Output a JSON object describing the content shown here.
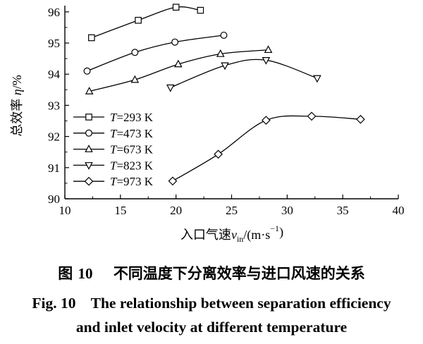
{
  "chart_data": {
    "type": "line",
    "title": "",
    "xlabel": "入口气速",
    "xlabel_var": "v",
    "xlabel_sub": "in",
    "xlabel_unit": "/(m·s",
    "xlabel_unit_sup": "−1",
    "xlabel_unit_end": ")",
    "ylabel": "总效率",
    "ylabel_var": "η",
    "ylabel_unit": "/%",
    "xlim": [
      10,
      40
    ],
    "ylim": [
      90,
      96.2
    ],
    "xticks": [
      "10",
      "15",
      "20",
      "25",
      "30",
      "35",
      "40"
    ],
    "yticks": [
      "90",
      "91",
      "92",
      "93",
      "94",
      "95",
      "96"
    ],
    "grid": false,
    "legend_position": "left",
    "series": [
      {
        "name": "T=293 K",
        "legend_var": "T",
        "legend_rest": "=293 K",
        "marker": "square",
        "points": [
          [
            12.4,
            95.17
          ],
          [
            16.6,
            95.73
          ],
          [
            20.0,
            96.15
          ],
          [
            22.2,
            96.05
          ]
        ]
      },
      {
        "name": "T=473 K",
        "legend_var": "T",
        "legend_rest": "=473 K",
        "marker": "circle",
        "points": [
          [
            12.0,
            94.1
          ],
          [
            16.3,
            94.7
          ],
          [
            19.9,
            95.03
          ],
          [
            24.3,
            95.25
          ]
        ]
      },
      {
        "name": "T=673 K",
        "legend_var": "T",
        "legend_rest": "=673 K",
        "marker": "triangle-up",
        "points": [
          [
            12.2,
            93.45
          ],
          [
            16.3,
            93.82
          ],
          [
            20.2,
            94.32
          ],
          [
            24.0,
            94.65
          ],
          [
            28.3,
            94.78
          ]
        ]
      },
      {
        "name": "T=823 K",
        "legend_var": "T",
        "legend_rest": "=823 K",
        "marker": "triangle-down",
        "points": [
          [
            19.5,
            93.57
          ],
          [
            24.4,
            94.28
          ],
          [
            28.1,
            94.45
          ],
          [
            32.7,
            93.87
          ]
        ]
      },
      {
        "name": "T=973 K",
        "legend_var": "T",
        "legend_rest": "=973 K",
        "marker": "diamond",
        "points": [
          [
            19.7,
            90.57
          ],
          [
            23.8,
            91.43
          ],
          [
            28.1,
            92.52
          ],
          [
            32.2,
            92.65
          ],
          [
            36.6,
            92.55
          ]
        ]
      }
    ]
  },
  "caption": {
    "cn_label": "图",
    "cn_number": "10",
    "cn_text": "不同温度下分离效率与进口风速的关系",
    "en_line1": "Fig. 10    The relationship between separation efficiency",
    "en_line2": "and inlet velocity at different temperature"
  }
}
